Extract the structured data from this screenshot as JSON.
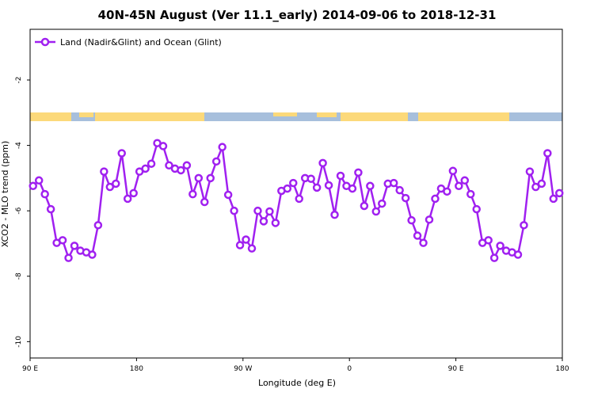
{
  "chart_data": {
    "type": "line",
    "title": "40N-45N August (Ver 11.1_early)   2014-09-06 to 2018-12-31",
    "x_label": "Longitude (deg E)",
    "y_label": "XCO2 - MLO trend (ppm)",
    "xlim": [
      90,
      540
    ],
    "xticks": [
      {
        "value": 90,
        "label": "90 E"
      },
      {
        "value": 180,
        "label": "180"
      },
      {
        "value": 270,
        "label": "90 W"
      },
      {
        "value": 360,
        "label": "0"
      },
      {
        "value": 450,
        "label": "90 E"
      },
      {
        "value": 540,
        "label": "180"
      }
    ],
    "ylim": [
      -10.5,
      -0.45
    ],
    "yticks": [
      -2,
      -4,
      -6,
      -8,
      -10
    ],
    "legend": "top-left",
    "x": [
      92.5,
      97.5,
      102.5,
      107.5,
      112.5,
      117.5,
      122.5,
      127.5,
      132.5,
      137.5,
      142.5,
      147.5,
      152.5,
      157.5,
      162.5,
      167.5,
      172.5,
      177.5,
      182.5,
      187.5,
      192.5,
      197.5,
      202.5,
      207.5,
      212.5,
      217.5,
      222.5,
      227.5,
      232.5,
      237.5,
      242.5,
      247.5,
      252.5,
      257.5,
      262.5,
      267.5,
      272.5,
      277.5,
      282.5,
      287.5,
      292.5,
      297.5,
      302.5,
      307.5,
      312.5,
      317.5,
      322.5,
      327.5,
      332.5,
      337.5,
      342.5,
      347.5,
      352.5,
      357.5,
      362.5,
      367.5,
      372.5,
      377.5,
      382.5,
      387.5,
      392.5,
      397.5,
      402.5,
      407.5,
      412.5,
      417.5,
      422.5,
      427.5,
      432.5,
      437.5,
      442.5,
      447.5,
      452.5,
      457.5,
      462.5,
      467.5,
      472.5,
      477.5,
      482.5,
      487.5,
      492.5,
      497.5,
      502.5,
      507.5,
      512.5,
      517.5,
      522.5,
      527.5,
      532.5,
      537.5
    ],
    "series": [
      {
        "name": "Land (Nadir&Glint) and Ocean (Glint)",
        "color": "#a020f0",
        "values": [
          -5.24,
          -5.07,
          -5.49,
          -5.95,
          -6.98,
          -6.9,
          -7.44,
          -7.07,
          -7.22,
          -7.27,
          -7.34,
          -6.44,
          -4.8,
          -5.27,
          -5.17,
          -4.24,
          -5.63,
          -5.46,
          -4.8,
          -4.71,
          -4.56,
          -3.93,
          -4.02,
          -4.61,
          -4.71,
          -4.76,
          -4.61,
          -5.49,
          -5.0,
          -5.73,
          -5.0,
          -4.49,
          -4.05,
          -5.51,
          -6.0,
          -7.05,
          -6.88,
          -7.15,
          -6.0,
          -6.32,
          -6.02,
          -6.37,
          -5.39,
          -5.32,
          -5.15,
          -5.63,
          -5.0,
          -5.02,
          -5.29,
          -4.54,
          -5.22,
          -6.12,
          -4.93,
          -5.24,
          -5.32,
          -4.83,
          -5.85,
          -5.24,
          -6.02,
          -5.78,
          -5.17,
          -5.15,
          -5.37,
          -5.61,
          -6.29,
          -6.76,
          -6.98,
          -6.27,
          -5.63,
          -5.32,
          -5.41,
          -4.78,
          -5.24,
          -5.07,
          -5.49,
          -5.95,
          -6.98,
          -6.9,
          -7.44,
          -7.07,
          -7.22,
          -7.27,
          -7.34,
          -6.44,
          -4.8,
          -5.27,
          -5.17,
          -4.24,
          -5.63,
          -5.46
        ]
      }
    ]
  }
}
